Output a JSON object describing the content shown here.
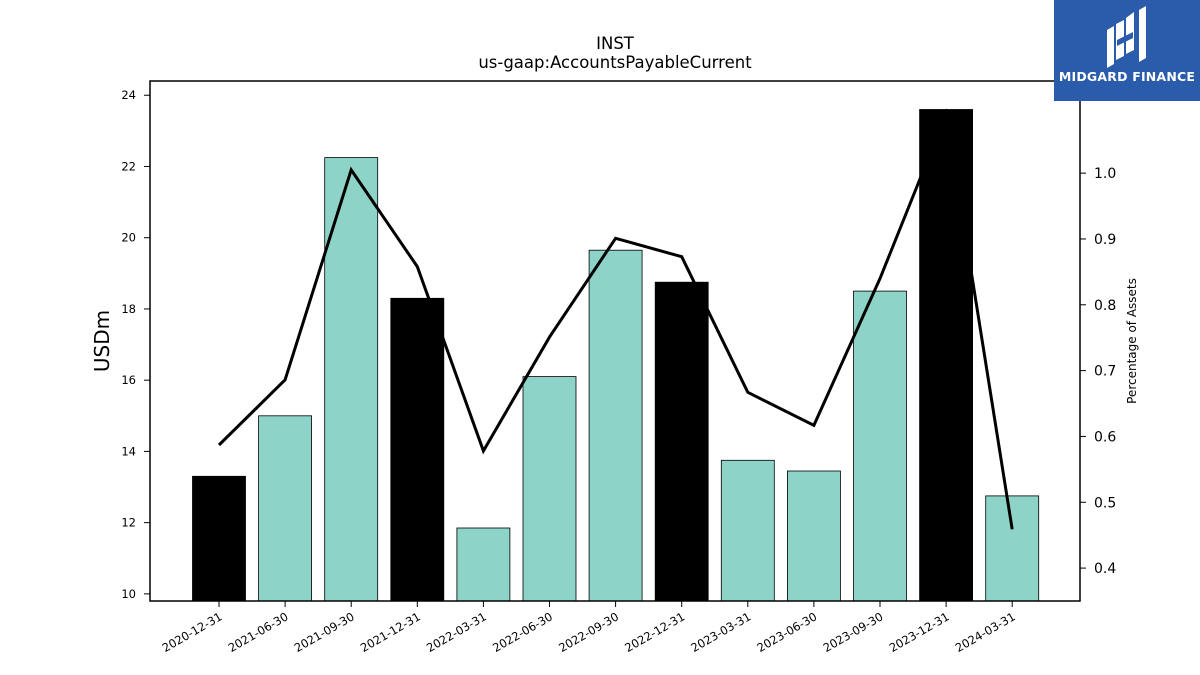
{
  "brand": {
    "name": "MIDGARD FINANCE",
    "color": "#2b5bab"
  },
  "chart_data": {
    "type": "bar",
    "title": "INST",
    "subtitle": "us-gaap:AccountsPayableCurrent",
    "ylabel": "USDm",
    "y2label": "Percentage of Assets",
    "ylim": [
      9.8,
      24.4
    ],
    "y2lim": [
      0.35,
      1.14
    ],
    "yticks": [
      10,
      12,
      14,
      16,
      18,
      20,
      22,
      24
    ],
    "y2ticks": [
      "0.4",
      "0.5",
      "0.6",
      "0.7",
      "0.8",
      "0.9",
      "1.0"
    ],
    "categories": [
      "2020-12-31",
      "2021-06-30",
      "2021-09-30",
      "2021-12-31",
      "2022-03-31",
      "2022-06-30",
      "2022-09-30",
      "2022-12-31",
      "2023-03-31",
      "2023-06-30",
      "2023-09-30",
      "2023-12-31",
      "2024-03-31"
    ],
    "series": [
      {
        "type": "bar",
        "values": [
          13.3,
          15.0,
          22.25,
          18.3,
          11.85,
          16.1,
          19.65,
          18.75,
          13.75,
          13.45,
          18.5,
          23.6,
          12.75
        ]
      },
      {
        "type": "line",
        "axis": "right",
        "values": [
          0.587,
          0.686,
          1.005,
          0.858,
          0.578,
          0.751,
          0.901,
          0.873,
          0.667,
          0.617,
          0.84,
          1.09,
          0.459
        ]
      }
    ],
    "bar_colors": [
      "#000000",
      "#8dd3c7",
      "#8dd3c7",
      "#000000",
      "#8dd3c7",
      "#8dd3c7",
      "#8dd3c7",
      "#000000",
      "#8dd3c7",
      "#8dd3c7",
      "#8dd3c7",
      "#000000",
      "#8dd3c7"
    ],
    "line_color": "#000000",
    "grid": false
  }
}
